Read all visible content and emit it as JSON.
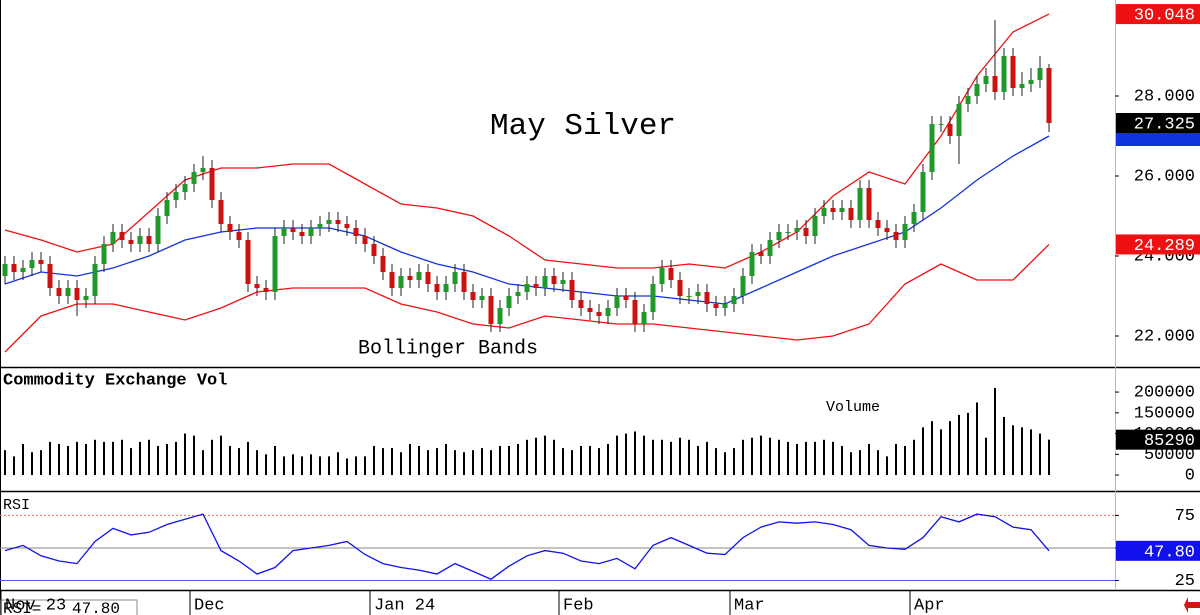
{
  "chart_data": [
    {
      "type": "candlestick",
      "title": "May Silver",
      "annotation": "Bollinger Bands",
      "categories": [
        "Nov 23",
        null,
        null,
        null,
        null,
        null,
        null,
        null,
        null,
        null,
        null,
        null,
        null,
        null,
        null,
        null,
        null,
        null,
        null,
        null,
        null,
        "Dec",
        null,
        null,
        null,
        null,
        null,
        null,
        null,
        null,
        null,
        null,
        null,
        null,
        null,
        null,
        null,
        null,
        null,
        null,
        null,
        "Jan 24",
        null,
        null,
        null,
        null,
        null,
        null,
        null,
        null,
        null,
        null,
        null,
        null,
        null,
        null,
        null,
        null,
        null,
        null,
        null,
        null,
        "Feb",
        null,
        null,
        null,
        null,
        null,
        null,
        null,
        null,
        null,
        null,
        null,
        null,
        null,
        null,
        null,
        null,
        null,
        null,
        "Mar",
        null,
        null,
        null,
        null,
        null,
        null,
        null,
        null,
        null,
        null,
        null,
        null,
        null,
        null,
        null,
        null,
        null,
        null,
        null,
        "Apr",
        null,
        null,
        null,
        null,
        null,
        null,
        null,
        null,
        null,
        null,
        null,
        null,
        null,
        null,
        null
      ],
      "open": [
        23.5,
        23.8,
        23.6,
        23.7,
        23.9,
        23.8,
        23.2,
        23.0,
        23.2,
        22.9,
        23.0,
        23.8,
        24.3,
        24.6,
        24.4,
        24.3,
        24.5,
        24.3,
        25.0,
        25.4,
        25.6,
        25.8,
        26.1,
        26.2,
        25.4,
        24.8,
        24.6,
        24.4,
        23.3,
        23.2,
        23.1,
        24.5,
        24.7,
        24.6,
        24.5,
        24.7,
        24.8,
        24.9,
        24.8,
        24.7,
        24.5,
        24.3,
        24.0,
        23.6,
        23.2,
        23.5,
        23.4,
        23.6,
        23.3,
        23.1,
        23.3,
        23.6,
        23.1,
        22.9,
        23.0,
        22.3,
        22.7,
        23.0,
        23.1,
        23.3,
        23.2,
        23.5,
        23.3,
        23.4,
        22.9,
        22.7,
        22.6,
        22.5,
        22.7,
        23.0,
        22.9,
        22.3,
        22.6,
        23.3,
        23.7,
        23.4,
        23.0,
        23.0,
        23.1,
        22.8,
        22.7,
        22.8,
        23.0,
        23.5,
        24.1,
        24.0,
        24.4,
        24.6,
        24.6,
        24.7,
        24.5,
        25.0,
        25.2,
        25.1,
        25.2,
        24.9,
        25.7,
        24.9,
        24.7,
        24.6,
        24.4,
        24.8,
        25.1,
        26.1,
        27.3,
        27.3,
        27.0,
        27.8,
        28.0,
        28.3,
        28.5,
        28.1,
        29.0,
        28.2,
        28.3,
        28.4,
        28.7
      ],
      "high": [
        24.0,
        24.0,
        23.9,
        24.1,
        24.1,
        24.0,
        23.4,
        23.4,
        23.4,
        23.2,
        24.0,
        24.5,
        24.8,
        24.8,
        24.6,
        24.7,
        24.7,
        25.2,
        25.6,
        25.8,
        26.0,
        26.3,
        26.5,
        26.4,
        25.6,
        25.0,
        24.8,
        24.6,
        23.5,
        23.4,
        24.7,
        24.9,
        24.9,
        24.8,
        24.9,
        25.0,
        25.1,
        25.1,
        25.0,
        24.9,
        24.7,
        24.5,
        24.2,
        23.8,
        23.7,
        23.7,
        23.8,
        23.8,
        23.5,
        23.5,
        23.8,
        23.8,
        23.3,
        23.2,
        23.2,
        22.9,
        23.2,
        23.3,
        23.5,
        23.5,
        23.7,
        23.7,
        23.6,
        23.6,
        23.1,
        22.9,
        22.8,
        22.9,
        23.2,
        23.2,
        23.1,
        22.8,
        23.5,
        23.9,
        23.9,
        23.6,
        23.2,
        23.3,
        23.3,
        23.0,
        23.0,
        23.2,
        23.7,
        24.3,
        24.3,
        24.6,
        24.8,
        24.8,
        24.9,
        24.9,
        25.2,
        25.4,
        25.4,
        25.4,
        25.4,
        25.9,
        25.9,
        25.1,
        24.9,
        24.8,
        25.0,
        25.3,
        26.3,
        27.5,
        27.5,
        27.5,
        28.0,
        28.2,
        28.5,
        28.7,
        29.9,
        29.2,
        29.2,
        28.6,
        28.7,
        29.0,
        28.8
      ],
      "low": [
        23.3,
        23.4,
        23.4,
        23.5,
        23.6,
        23.0,
        22.8,
        22.8,
        22.5,
        22.7,
        22.8,
        23.6,
        24.1,
        24.2,
        24.1,
        24.1,
        24.1,
        24.1,
        24.8,
        25.2,
        25.4,
        25.6,
        25.9,
        25.2,
        24.6,
        24.4,
        24.2,
        23.1,
        23.0,
        22.9,
        22.9,
        24.3,
        24.4,
        24.3,
        24.3,
        24.5,
        24.6,
        24.6,
        24.5,
        24.3,
        24.1,
        23.8,
        23.4,
        23.0,
        23.0,
        23.2,
        23.2,
        23.1,
        22.9,
        22.9,
        23.1,
        22.9,
        22.7,
        22.7,
        22.1,
        22.1,
        22.5,
        22.8,
        22.9,
        23.0,
        23.0,
        23.1,
        23.1,
        22.7,
        22.5,
        22.4,
        22.3,
        22.3,
        22.5,
        22.7,
        22.1,
        22.1,
        22.4,
        23.1,
        23.2,
        22.8,
        22.8,
        22.8,
        22.6,
        22.5,
        22.5,
        22.6,
        22.8,
        23.3,
        23.8,
        23.8,
        24.2,
        24.4,
        24.4,
        24.3,
        24.3,
        24.8,
        24.9,
        24.9,
        24.7,
        24.7,
        24.7,
        24.5,
        24.4,
        24.2,
        24.2,
        24.6,
        24.9,
        25.9,
        27.1,
        26.8,
        26.3,
        27.6,
        27.8,
        28.1,
        27.9,
        27.9,
        28.0,
        28.0,
        28.1,
        28.2,
        27.1
      ],
      "close": [
        23.8,
        23.6,
        23.7,
        23.9,
        23.8,
        23.2,
        23.0,
        23.2,
        22.9,
        23.0,
        23.8,
        24.3,
        24.6,
        24.4,
        24.3,
        24.5,
        24.3,
        25.0,
        25.4,
        25.6,
        25.8,
        26.1,
        26.2,
        25.4,
        24.8,
        24.6,
        24.4,
        23.3,
        23.2,
        23.1,
        24.5,
        24.7,
        24.6,
        24.5,
        24.7,
        24.8,
        24.9,
        24.8,
        24.7,
        24.5,
        24.3,
        24.0,
        23.6,
        23.2,
        23.5,
        23.4,
        23.6,
        23.3,
        23.1,
        23.3,
        23.6,
        23.1,
        22.9,
        23.0,
        22.3,
        22.7,
        23.0,
        23.1,
        23.3,
        23.2,
        23.5,
        23.3,
        23.4,
        22.9,
        22.7,
        22.6,
        22.5,
        22.7,
        23.0,
        22.9,
        22.3,
        22.6,
        23.3,
        23.7,
        23.4,
        23.0,
        23.0,
        23.1,
        22.8,
        22.7,
        22.8,
        23.0,
        23.5,
        24.1,
        24.0,
        24.4,
        24.6,
        24.6,
        24.7,
        24.5,
        25.0,
        25.2,
        25.1,
        25.2,
        24.9,
        25.7,
        24.9,
        24.7,
        24.6,
        24.4,
        24.8,
        25.1,
        26.1,
        27.3,
        27.3,
        27.0,
        27.8,
        28.0,
        28.3,
        28.5,
        28.1,
        29.0,
        28.2,
        28.3,
        28.4,
        28.7,
        27.325
      ],
      "color_up": "#1f9a2a",
      "color_down": "#cc1111",
      "close_color": "#000000",
      "series": [
        {
          "color": "#ee1111",
          "x": [
            0,
            4,
            8,
            12,
            16,
            20,
            24,
            28,
            32,
            36,
            40,
            44,
            48,
            52,
            56,
            60,
            64,
            68,
            72,
            76,
            80,
            84,
            88,
            92,
            96,
            100,
            104,
            108,
            112,
            116
          ],
          "values": [
            24.65,
            24.4,
            24.1,
            24.3,
            25.1,
            25.9,
            26.2,
            26.2,
            26.3,
            26.3,
            25.8,
            25.3,
            25.2,
            25.0,
            24.5,
            23.9,
            23.8,
            23.7,
            23.7,
            23.8,
            23.7,
            24.1,
            24.6,
            25.5,
            26.1,
            25.8,
            27.0,
            28.5,
            29.6,
            30.048
          ]
        },
        {
          "color": "#1133dd",
          "x": [
            0,
            4,
            8,
            12,
            16,
            20,
            24,
            28,
            32,
            36,
            40,
            44,
            48,
            52,
            56,
            60,
            64,
            68,
            72,
            76,
            80,
            84,
            88,
            92,
            96,
            100,
            104,
            108,
            112,
            116
          ],
          "values": [
            23.3,
            23.6,
            23.5,
            23.7,
            24.0,
            24.4,
            24.6,
            24.7,
            24.7,
            24.7,
            24.5,
            24.1,
            23.8,
            23.6,
            23.3,
            23.2,
            23.1,
            23.0,
            23.0,
            22.9,
            22.8,
            23.2,
            23.6,
            24.0,
            24.3,
            24.6,
            25.2,
            25.9,
            26.5,
            27.0
          ]
        },
        {
          "color": "#ee1111",
          "x": [
            0,
            4,
            8,
            12,
            16,
            20,
            24,
            28,
            32,
            36,
            40,
            44,
            48,
            52,
            56,
            60,
            64,
            68,
            72,
            76,
            80,
            84,
            88,
            92,
            96,
            100,
            104,
            108,
            112,
            116
          ],
          "values": [
            21.6,
            22.5,
            22.8,
            22.8,
            22.6,
            22.4,
            22.7,
            23.1,
            23.2,
            23.2,
            23.2,
            22.8,
            22.6,
            22.3,
            22.2,
            22.5,
            22.4,
            22.3,
            22.3,
            22.2,
            22.1,
            22.0,
            21.9,
            22.0,
            22.3,
            23.3,
            23.8,
            23.4,
            23.4,
            24.289
          ]
        }
      ],
      "ylim": [
        21.225,
        30.4
      ],
      "yticks": [
        {
          "value": 22,
          "label": "22.000"
        },
        {
          "value": 24,
          "label": "24.000"
        },
        {
          "value": 26,
          "label": "26.000"
        },
        {
          "value": 28,
          "label": "28.000"
        }
      ]
    },
    {
      "type": "bar",
      "title": "Commodity Exchange Vol",
      "annotation": "Volume",
      "color": "#000000",
      "values": [
        60000,
        45000,
        75000,
        55000,
        60000,
        80000,
        75000,
        70000,
        80000,
        75000,
        85000,
        80000,
        80000,
        85000,
        65000,
        80000,
        85000,
        70000,
        75000,
        80000,
        100000,
        95000,
        60000,
        85000,
        95000,
        70000,
        65000,
        80000,
        60000,
        50000,
        70000,
        45000,
        50000,
        45000,
        50000,
        45000,
        45000,
        55000,
        40000,
        45000,
        45000,
        70000,
        65000,
        65000,
        55000,
        75000,
        70000,
        60000,
        65000,
        75000,
        60000,
        55000,
        60000,
        65000,
        60000,
        70000,
        70000,
        75000,
        85000,
        90000,
        95000,
        85000,
        65000,
        60000,
        70000,
        70000,
        65000,
        75000,
        95000,
        100000,
        105000,
        95000,
        85000,
        85000,
        80000,
        90000,
        85000,
        70000,
        80000,
        65000,
        55000,
        65000,
        85000,
        90000,
        95000,
        90000,
        85000,
        80000,
        75000,
        80000,
        80000,
        85000,
        80000,
        70000,
        55000,
        60000,
        75000,
        60000,
        45000,
        75000,
        70000,
        85000,
        115000,
        130000,
        110000,
        130000,
        145000,
        150000,
        175000,
        90000,
        210000,
        140000,
        120000,
        115000,
        110000,
        100000,
        85290
      ],
      "ylim": [
        -36000,
        258000
      ],
      "yticks": [
        0,
        50000,
        100000,
        150000,
        200000
      ]
    },
    {
      "type": "line",
      "title": "RSI",
      "label": "RSI=",
      "color": "#1111ee",
      "x": [
        0,
        2,
        4,
        6,
        8,
        10,
        12,
        14,
        16,
        18,
        20,
        22,
        24,
        26,
        28,
        30,
        32,
        34,
        36,
        38,
        40,
        42,
        44,
        46,
        48,
        50,
        52,
        54,
        56,
        58,
        60,
        62,
        64,
        66,
        68,
        70,
        72,
        74,
        76,
        78,
        80,
        82,
        84,
        86,
        88,
        90,
        92,
        94,
        96,
        98,
        100,
        102,
        104,
        106,
        108,
        110,
        112,
        114,
        116
      ],
      "values": [
        48,
        52,
        44,
        40,
        38,
        55,
        65,
        60,
        62,
        68,
        72,
        76,
        48,
        40,
        30,
        35,
        48,
        50,
        52,
        55,
        45,
        38,
        35,
        33,
        30,
        38,
        32,
        26,
        36,
        44,
        48,
        46,
        40,
        38,
        42,
        34,
        52,
        58,
        52,
        46,
        45,
        58,
        66,
        70,
        69,
        70,
        68,
        64,
        52,
        50,
        49,
        58,
        74,
        70,
        76,
        74,
        66,
        64,
        47.8
      ],
      "value_labels": [
        null,
        null,
        null,
        null,
        null,
        null,
        null,
        null,
        null,
        null,
        null,
        null,
        null,
        null,
        null,
        null,
        null,
        null,
        null,
        null,
        null,
        null,
        null,
        null,
        null,
        null,
        null,
        null,
        null,
        null,
        null,
        null,
        null,
        null,
        null,
        null,
        null,
        null,
        null,
        null,
        null,
        null,
        null,
        null,
        null,
        null,
        null,
        null,
        null,
        null,
        null,
        null,
        null,
        null,
        null,
        null,
        null,
        null,
        "47.80"
      ],
      "ylim": [
        17.7,
        93
      ],
      "yticks": [
        25,
        50,
        75
      ]
    }
  ]
}
